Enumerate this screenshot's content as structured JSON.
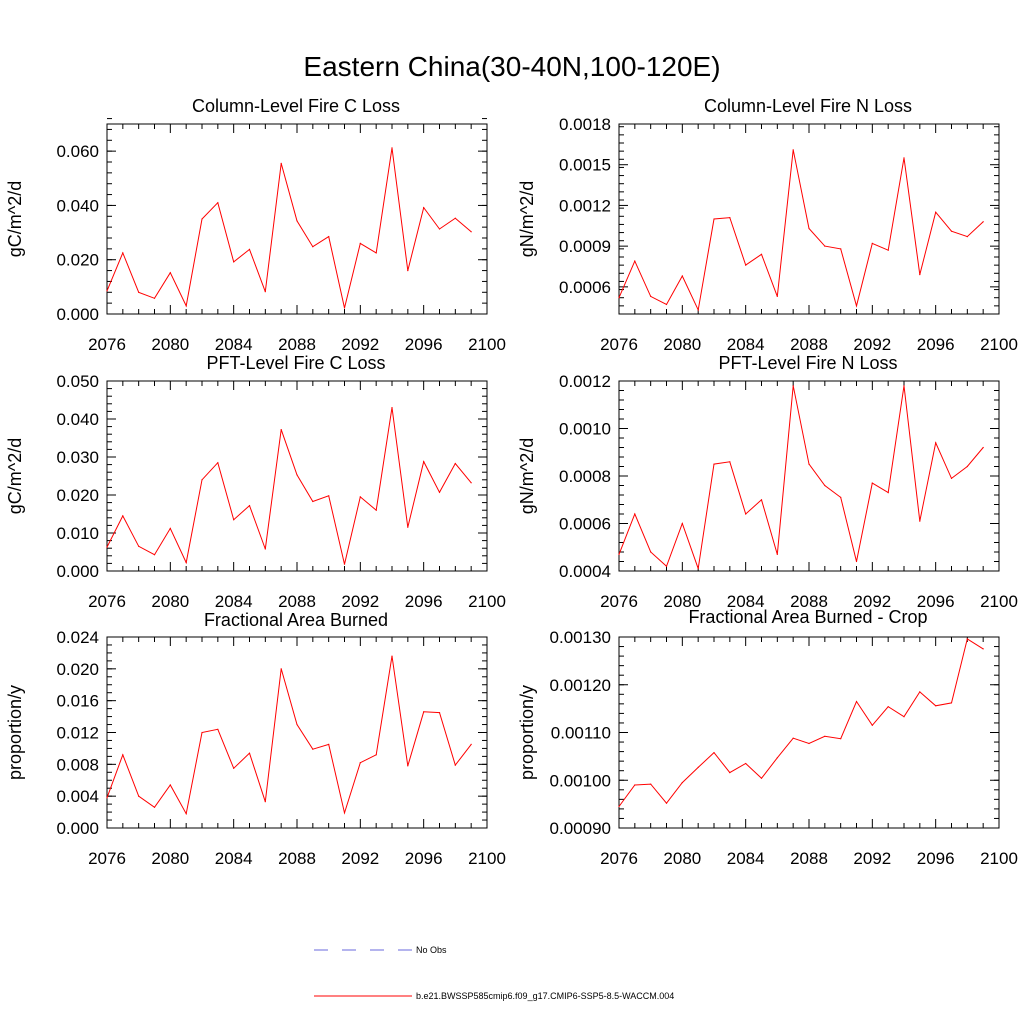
{
  "main_title": "Eastern China(30-40N,100-120E)",
  "colors": {
    "model_line": "#ff0000",
    "obs_line": "#6a6adc",
    "axis": "#000000"
  },
  "legend": {
    "obs_label": "No Obs",
    "model_label": "b.e21.BWSSP585cmip6.f09_g17.CMIP6-SSP5-8.5-WACCM.004"
  },
  "chart_data": [
    {
      "type": "line",
      "title": "Column-Level Fire C Loss",
      "ylabel": "gC/m^2/d",
      "xlabel": "",
      "xlim": [
        2076,
        2100
      ],
      "ylim": [
        0.0,
        0.07
      ],
      "x_ticks": [
        "2076",
        "2080",
        "2084",
        "2088",
        "2092",
        "2096",
        "2100"
      ],
      "y_ticks": [
        "0.000",
        "0.020",
        "0.040",
        "0.060"
      ],
      "y_tick_values": [
        0.0,
        0.02,
        0.04,
        0.06
      ],
      "y_minor_step": 0.004,
      "series": [
        {
          "name": "b.e21.BWSSP585cmip6.f09_g17.CMIP6-SSP5-8.5-WACCM.004",
          "x": [
            2076,
            2077,
            2078,
            2079,
            2080,
            2081,
            2082,
            2083,
            2084,
            2085,
            2086,
            2087,
            2088,
            2089,
            2090,
            2091,
            2092,
            2093,
            2094,
            2095,
            2096,
            2097,
            2098,
            2099
          ],
          "values": [
            0.0085,
            0.0225,
            0.008,
            0.0058,
            0.0152,
            0.003,
            0.035,
            0.041,
            0.0192,
            0.0238,
            0.0082,
            0.0555,
            0.0343,
            0.0248,
            0.0285,
            0.0022,
            0.026,
            0.0225,
            0.0612,
            0.016,
            0.0392,
            0.0313,
            0.0353,
            0.0303
          ]
        }
      ]
    },
    {
      "type": "line",
      "title": "Column-Level Fire N Loss",
      "ylabel": "gN/m^2/d",
      "xlabel": "",
      "xlim": [
        2076,
        2100
      ],
      "ylim": [
        0.0004,
        0.0018
      ],
      "x_ticks": [
        "2076",
        "2080",
        "2084",
        "2088",
        "2092",
        "2096",
        "2100"
      ],
      "y_ticks": [
        "0.0006",
        "0.0009",
        "0.0012",
        "0.0015",
        "0.0018"
      ],
      "y_tick_values": [
        0.0006,
        0.0009,
        0.0012,
        0.0015,
        0.0018
      ],
      "y_minor_step": 6e-05,
      "series": [
        {
          "name": "b.e21.BWSSP585cmip6.f09_g17.CMIP6-SSP5-8.5-WACCM.004",
          "x": [
            2076,
            2077,
            2078,
            2079,
            2080,
            2081,
            2082,
            2083,
            2084,
            2085,
            2086,
            2087,
            2088,
            2089,
            2090,
            2091,
            2092,
            2093,
            2094,
            2095,
            2096,
            2097,
            2098,
            2099
          ],
          "values": [
            0.00052,
            0.00079,
            0.00053,
            0.00047,
            0.00068,
            0.00043,
            0.0011,
            0.00111,
            0.00076,
            0.00084,
            0.00053,
            0.00161,
            0.00103,
            0.0009,
            0.00088,
            0.00046,
            0.00092,
            0.00087,
            0.00155,
            0.00069,
            0.00115,
            0.00101,
            0.00097,
            0.00108
          ]
        }
      ]
    },
    {
      "type": "line",
      "title": "PFT-Level Fire C Loss",
      "ylabel": "gC/m^2/d",
      "xlabel": "",
      "xlim": [
        2076,
        2100
      ],
      "ylim": [
        0.0,
        0.05
      ],
      "x_ticks": [
        "2076",
        "2080",
        "2084",
        "2088",
        "2092",
        "2096",
        "2100"
      ],
      "y_ticks": [
        "0.000",
        "0.010",
        "0.020",
        "0.030",
        "0.040",
        "0.050"
      ],
      "y_tick_values": [
        0.0,
        0.01,
        0.02,
        0.03,
        0.04,
        0.05
      ],
      "y_minor_step": 0.002,
      "series": [
        {
          "name": "b.e21.BWSSP585cmip6.f09_g17.CMIP6-SSP5-8.5-WACCM.004",
          "x": [
            2076,
            2077,
            2078,
            2079,
            2080,
            2081,
            2082,
            2083,
            2084,
            2085,
            2086,
            2087,
            2088,
            2089,
            2090,
            2091,
            2092,
            2093,
            2094,
            2095,
            2096,
            2097,
            2098,
            2099
          ],
          "values": [
            0.0063,
            0.0145,
            0.0065,
            0.0043,
            0.0112,
            0.0022,
            0.024,
            0.0285,
            0.0135,
            0.0172,
            0.0058,
            0.0372,
            0.0253,
            0.0183,
            0.0198,
            0.0018,
            0.0195,
            0.016,
            0.043,
            0.0115,
            0.0288,
            0.0207,
            0.0283,
            0.0232
          ]
        }
      ]
    },
    {
      "type": "line",
      "title": "PFT-Level Fire N Loss",
      "ylabel": "gN/m^2/d",
      "xlabel": "",
      "xlim": [
        2076,
        2100
      ],
      "ylim": [
        0.0004,
        0.0012
      ],
      "x_ticks": [
        "2076",
        "2080",
        "2084",
        "2088",
        "2092",
        "2096",
        "2100"
      ],
      "y_ticks": [
        "0.0004",
        "0.0006",
        "0.0008",
        "0.0010",
        "0.0012"
      ],
      "y_tick_values": [
        0.0004,
        0.0006,
        0.0008,
        0.001,
        0.0012
      ],
      "y_minor_step": 4e-05,
      "series": [
        {
          "name": "b.e21.BWSSP585cmip6.f09_g17.CMIP6-SSP5-8.5-WACCM.004",
          "x": [
            2076,
            2077,
            2078,
            2079,
            2080,
            2081,
            2082,
            2083,
            2084,
            2085,
            2086,
            2087,
            2088,
            2089,
            2090,
            2091,
            2092,
            2093,
            2094,
            2095,
            2096,
            2097,
            2098,
            2099
          ],
          "values": [
            0.00047,
            0.00064,
            0.00048,
            0.00042,
            0.0006,
            0.00041,
            0.00085,
            0.00086,
            0.00064,
            0.0007,
            0.00047,
            0.00118,
            0.00085,
            0.00076,
            0.00071,
            0.00044,
            0.00077,
            0.00073,
            0.00118,
            0.00061,
            0.00094,
            0.00079,
            0.00084,
            0.00092
          ]
        }
      ]
    },
    {
      "type": "line",
      "title": "Fractional Area Burned",
      "ylabel": "proportion/y",
      "xlabel": "",
      "xlim": [
        2076,
        2100
      ],
      "ylim": [
        0.0,
        0.024
      ],
      "x_ticks": [
        "2076",
        "2080",
        "2084",
        "2088",
        "2092",
        "2096",
        "2100"
      ],
      "y_ticks": [
        "0.000",
        "0.004",
        "0.008",
        "0.012",
        "0.016",
        "0.020",
        "0.024"
      ],
      "y_tick_values": [
        0.0,
        0.004,
        0.008,
        0.012,
        0.016,
        0.02,
        0.024
      ],
      "y_minor_step": 0.001,
      "series": [
        {
          "name": "b.e21.BWSSP585cmip6.f09_g17.CMIP6-SSP5-8.5-WACCM.004",
          "x": [
            2076,
            2077,
            2078,
            2079,
            2080,
            2081,
            2082,
            2083,
            2084,
            2085,
            2086,
            2087,
            2088,
            2089,
            2090,
            2091,
            2092,
            2093,
            2094,
            2095,
            2096,
            2097,
            2098,
            2099
          ],
          "values": [
            0.0038,
            0.0092,
            0.004,
            0.0026,
            0.0054,
            0.0018,
            0.012,
            0.0124,
            0.0075,
            0.0094,
            0.0033,
            0.02,
            0.013,
            0.0099,
            0.0105,
            0.0019,
            0.0082,
            0.0092,
            0.0216,
            0.0078,
            0.0146,
            0.0145,
            0.0079,
            0.0105
          ]
        }
      ]
    },
    {
      "type": "line",
      "title": "Fractional Area Burned - Crop",
      "ylabel": "proportion/y",
      "xlabel": "",
      "xlim": [
        2076,
        2100
      ],
      "ylim": [
        0.0009,
        0.0013
      ],
      "x_ticks": [
        "2076",
        "2080",
        "2084",
        "2088",
        "2092",
        "2096",
        "2100"
      ],
      "y_ticks": [
        "0.00090",
        "0.00100",
        "0.00110",
        "0.00120",
        "0.00130"
      ],
      "y_tick_values": [
        0.0009,
        0.001,
        0.0011,
        0.0012,
        0.0013
      ],
      "y_minor_step": 2e-05,
      "series": [
        {
          "name": "b.e21.BWSSP585cmip6.f09_g17.CMIP6-SSP5-8.5-WACCM.004",
          "x": [
            2076,
            2077,
            2078,
            2079,
            2080,
            2081,
            2082,
            2083,
            2084,
            2085,
            2086,
            2087,
            2088,
            2089,
            2090,
            2091,
            2092,
            2093,
            2094,
            2095,
            2096,
            2097,
            2098,
            2099
          ],
          "values": [
            0.000945,
            0.00099,
            0.000992,
            0.000952,
            0.000995,
            0.001027,
            0.001058,
            0.001016,
            0.001035,
            0.001004,
            0.001047,
            0.001088,
            0.001077,
            0.001092,
            0.001087,
            0.001165,
            0.001115,
            0.001154,
            0.001133,
            0.001185,
            0.001156,
            0.001162,
            0.001296,
            0.001275
          ]
        }
      ]
    }
  ]
}
